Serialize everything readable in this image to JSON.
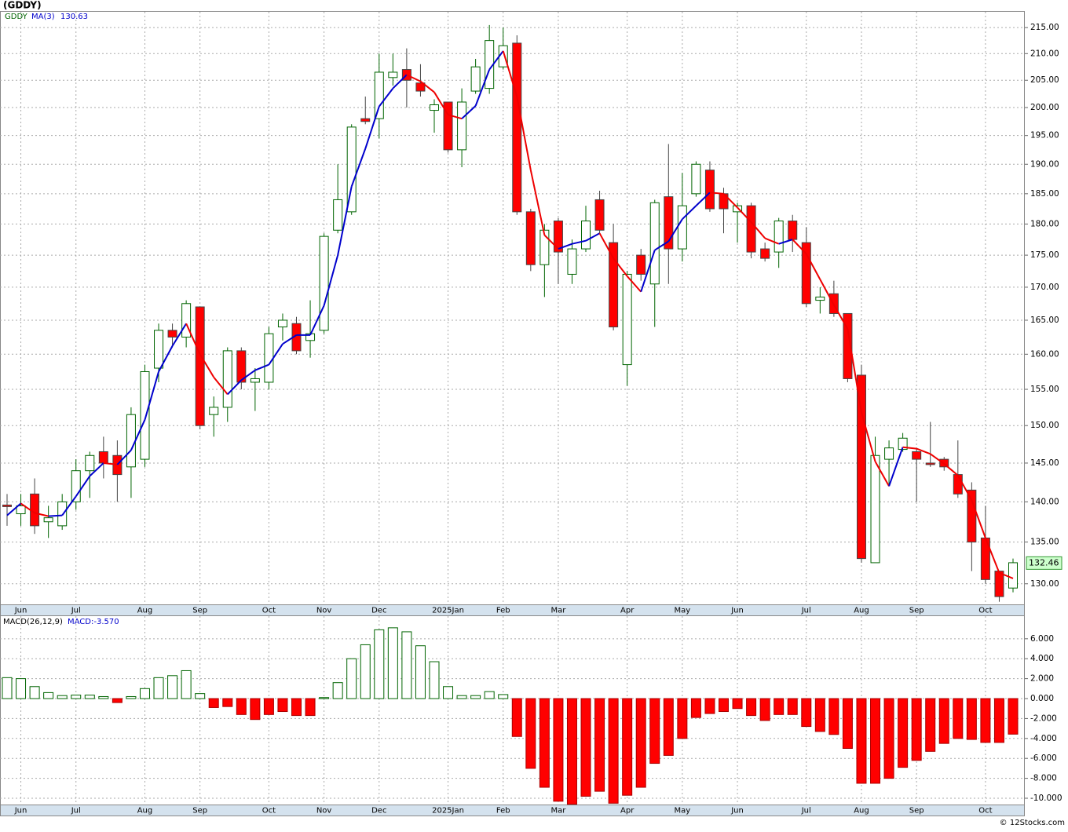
{
  "chart_data": [
    {
      "type": "candlestick",
      "title": "(GDDY)",
      "symbol": "GDDY",
      "ma_last": 130.63,
      "categories": [
        null,
        "Jun",
        null,
        null,
        null,
        "Jul",
        null,
        null,
        null,
        null,
        "Aug",
        null,
        null,
        null,
        "Sep",
        null,
        null,
        null,
        null,
        "Oct",
        null,
        null,
        null,
        "Nov",
        null,
        null,
        null,
        "Dec",
        null,
        null,
        null,
        null,
        "2025Jan",
        null,
        null,
        null,
        "Feb",
        null,
        null,
        null,
        "Mar",
        null,
        null,
        null,
        null,
        "Apr",
        null,
        null,
        null,
        "May",
        null,
        null,
        null,
        "Jun",
        null,
        null,
        null,
        null,
        "Jul",
        null,
        null,
        null,
        "Aug",
        null,
        null,
        null,
        "Sep",
        null,
        null,
        null,
        null,
        "Oct",
        null,
        null
      ],
      "open": [
        139.6,
        138.5,
        141,
        137.5,
        137,
        140,
        144,
        146.5,
        146,
        144.5,
        145.5,
        158,
        163.5,
        162.5,
        167,
        151.5,
        152.5,
        160.5,
        156,
        156,
        164,
        164.5,
        162,
        163.5,
        179,
        182,
        198,
        198,
        205.5,
        207,
        204.5,
        199.5,
        201,
        192.5,
        203,
        203.5,
        207.5,
        212,
        182,
        173.5,
        180.5,
        172,
        176,
        184,
        177,
        158.5,
        175,
        170.5,
        184.5,
        176,
        185,
        189,
        185,
        182,
        183,
        176,
        175.5,
        180.5,
        177,
        168,
        169,
        166,
        157,
        132.5,
        145.5,
        146.8,
        146.5,
        145,
        145.5,
        143.5,
        141.5,
        135.5,
        131.5,
        129.5
      ],
      "high": [
        141,
        141,
        143,
        139.5,
        141,
        145.5,
        146.5,
        148.5,
        148,
        152.5,
        158.5,
        164.5,
        164.5,
        168,
        167,
        154,
        161,
        161,
        158,
        164,
        166,
        165.5,
        168,
        178.5,
        190,
        197,
        202,
        210,
        210,
        211,
        208,
        201.5,
        201,
        203.5,
        209,
        215.5,
        215,
        213.5,
        182.5,
        180,
        181,
        177.5,
        183,
        185.5,
        180,
        172.5,
        176,
        184,
        193.5,
        188.5,
        190.5,
        190.5,
        186,
        183.5,
        183.5,
        177,
        181,
        181.5,
        179.5,
        170,
        171,
        166,
        158.5,
        148.5,
        148,
        149,
        147,
        150.5,
        145.8,
        148,
        142.5,
        139.5,
        131.5,
        133
      ],
      "low": [
        137,
        137,
        136,
        135.5,
        136.5,
        139,
        140.5,
        143,
        140,
        140.5,
        144.5,
        156,
        161,
        161,
        149.5,
        148.5,
        150.5,
        155,
        152,
        155,
        162,
        160,
        159.5,
        163,
        178.5,
        181.5,
        197,
        194.5,
        204,
        200,
        202,
        195.5,
        192,
        189.5,
        202.5,
        202.5,
        207,
        181.5,
        172.5,
        168.5,
        170.5,
        170.5,
        175.5,
        178.5,
        163.5,
        155.5,
        171,
        164,
        170.5,
        174,
        184.5,
        182,
        178.5,
        177,
        174.5,
        174,
        173,
        175.5,
        167,
        166,
        165.5,
        156,
        132.5,
        132.5,
        142,
        146.5,
        140,
        144.5,
        144,
        140.5,
        131.5,
        130,
        127.9,
        129
      ],
      "close": [
        139.4,
        139.5,
        137,
        138,
        140,
        144,
        146,
        145,
        143.5,
        151.5,
        157.5,
        163.5,
        162.5,
        167.5,
        150,
        152.5,
        160.5,
        156,
        156.5,
        163,
        165,
        160.5,
        163,
        178,
        184,
        196.5,
        197.5,
        206.5,
        206.5,
        205,
        203,
        200.5,
        192.5,
        201,
        207.5,
        212.5,
        211.5,
        182,
        173.5,
        179,
        175.5,
        176,
        180.5,
        179,
        164,
        172,
        172,
        183.5,
        176,
        183,
        190,
        182.5,
        182.5,
        183,
        175.5,
        174.5,
        180.5,
        177.5,
        167.5,
        168.5,
        166,
        156.5,
        133,
        146,
        147,
        148.3,
        145.5,
        144.8,
        144.5,
        141,
        135,
        130.5,
        128.5,
        132.5
      ],
      "up_color": "#006400",
      "down_color": "#ff0000",
      "ma": {
        "name": "MA(3)",
        "up_color": "#0000cc",
        "down_color": "#ee0000",
        "values": [
          138.3,
          139.8,
          138.6,
          138.2,
          138.3,
          140.7,
          143.3,
          145.0,
          144.8,
          146.7,
          150.8,
          157.5,
          161.2,
          164.5,
          160.0,
          156.7,
          154.3,
          156.3,
          157.7,
          158.5,
          161.5,
          162.8,
          162.8,
          167.2,
          175.0,
          186.2,
          192.7,
          200.2,
          203.5,
          206.0,
          204.8,
          202.8,
          198.7,
          198.0,
          200.3,
          207.0,
          210.5,
          202.0,
          189.0,
          178.2,
          176.0,
          176.8,
          177.3,
          178.5,
          174.5,
          171.7,
          169.3,
          175.8,
          177.2,
          180.8,
          183.0,
          185.2,
          185.0,
          182.7,
          180.3,
          177.7,
          176.8,
          177.5,
          175.2,
          171.2,
          167.3,
          163.7,
          151.8,
          145.2,
          142.0,
          147.1,
          146.9,
          146.2,
          144.9,
          143.4,
          140.2,
          135.5,
          131.3,
          130.63
        ]
      },
      "ylim": [
        127.6,
        218.1
      ],
      "log": true,
      "grid": true,
      "last_price": 132.46,
      "yticks": [
        {
          "value": 130,
          "label": "130.00"
        },
        {
          "value": 135,
          "label": "135.00"
        },
        {
          "value": 140,
          "label": "140.00"
        },
        {
          "value": 145,
          "label": "145.00"
        },
        {
          "value": 150,
          "label": "150.00"
        },
        {
          "value": 155,
          "label": "155.00"
        },
        {
          "value": 160,
          "label": "160.00"
        },
        {
          "value": 165,
          "label": "165.00"
        },
        {
          "value": 170,
          "label": "170.00"
        },
        {
          "value": 175,
          "label": "175.00"
        },
        {
          "value": 180,
          "label": "180.00"
        },
        {
          "value": 185,
          "label": "185.00"
        },
        {
          "value": 190,
          "label": "190.00"
        },
        {
          "value": 195,
          "label": "195.00"
        },
        {
          "value": 200,
          "label": "200.00"
        },
        {
          "value": 205,
          "label": "205.00"
        },
        {
          "value": 210,
          "label": "210.00"
        },
        {
          "value": 215,
          "label": "215.00"
        }
      ]
    },
    {
      "type": "bar",
      "title": "MACD(26,12,9)",
      "last_label": "MACD:-3.570",
      "values": [
        2.1,
        2.0,
        1.2,
        0.6,
        0.3,
        0.35,
        0.35,
        0.2,
        -0.4,
        0.2,
        1.0,
        2.1,
        2.3,
        2.8,
        0.5,
        -0.9,
        -0.8,
        -1.6,
        -2.1,
        -1.6,
        -1.3,
        -1.7,
        -1.7,
        0.1,
        1.6,
        4.0,
        5.4,
        6.9,
        7.1,
        6.7,
        5.3,
        3.7,
        1.2,
        0.3,
        0.3,
        0.7,
        0.4,
        -3.8,
        -7.0,
        -8.9,
        -10.3,
        -10.6,
        -9.8,
        -9.3,
        -10.5,
        -9.7,
        -8.9,
        -6.5,
        -5.7,
        -4.0,
        -1.9,
        -1.5,
        -1.3,
        -1.0,
        -1.7,
        -2.2,
        -1.6,
        -1.6,
        -2.8,
        -3.3,
        -3.6,
        -5.0,
        -8.5,
        -8.5,
        -8.0,
        -6.9,
        -6.2,
        -5.3,
        -4.5,
        -4.0,
        -4.1,
        -4.4,
        -4.4,
        -3.57
      ],
      "up_color": "#006400",
      "down_color": "#ff0000",
      "ylim": [
        -10.63,
        8.27
      ],
      "grid": true,
      "yticks": [
        {
          "value": 6,
          "label": "6.000"
        },
        {
          "value": 4,
          "label": "4.000"
        },
        {
          "value": 2,
          "label": "2.000"
        },
        {
          "value": 0,
          "label": "0.000"
        },
        {
          "value": -2,
          "label": "-2.000"
        },
        {
          "value": -4,
          "label": "-4.000"
        },
        {
          "value": -6,
          "label": "-6.000"
        },
        {
          "value": -8,
          "label": "-8.000"
        },
        {
          "value": -10,
          "label": "-10.000"
        }
      ]
    }
  ],
  "footer": "© 12Stocks.com"
}
